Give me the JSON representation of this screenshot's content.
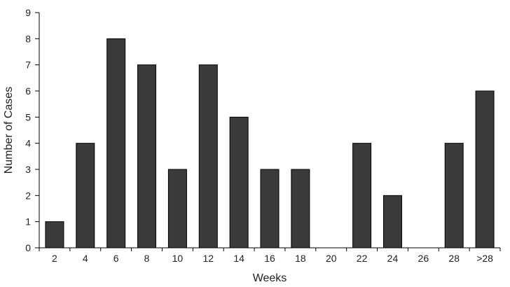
{
  "chart_data": {
    "type": "bar",
    "title": "",
    "xlabel": "Weeks",
    "ylabel": "Number of Cases",
    "categories": [
      "2",
      "4",
      "6",
      "8",
      "10",
      "12",
      "14",
      "16",
      "18",
      "20",
      "22",
      "24",
      "26",
      "28",
      ">28"
    ],
    "values": [
      1,
      4,
      8,
      7,
      3,
      7,
      5,
      3,
      3,
      0,
      4,
      2,
      0,
      4,
      6
    ],
    "ylim": [
      0,
      9
    ],
    "yticks": [
      "0",
      "1",
      "2",
      "3",
      "4",
      "5",
      "6",
      "7",
      "8",
      "9"
    ],
    "grid": false,
    "legend": "none",
    "bar_color": "#3a3a3a",
    "bar_outline_color": "#000000"
  }
}
